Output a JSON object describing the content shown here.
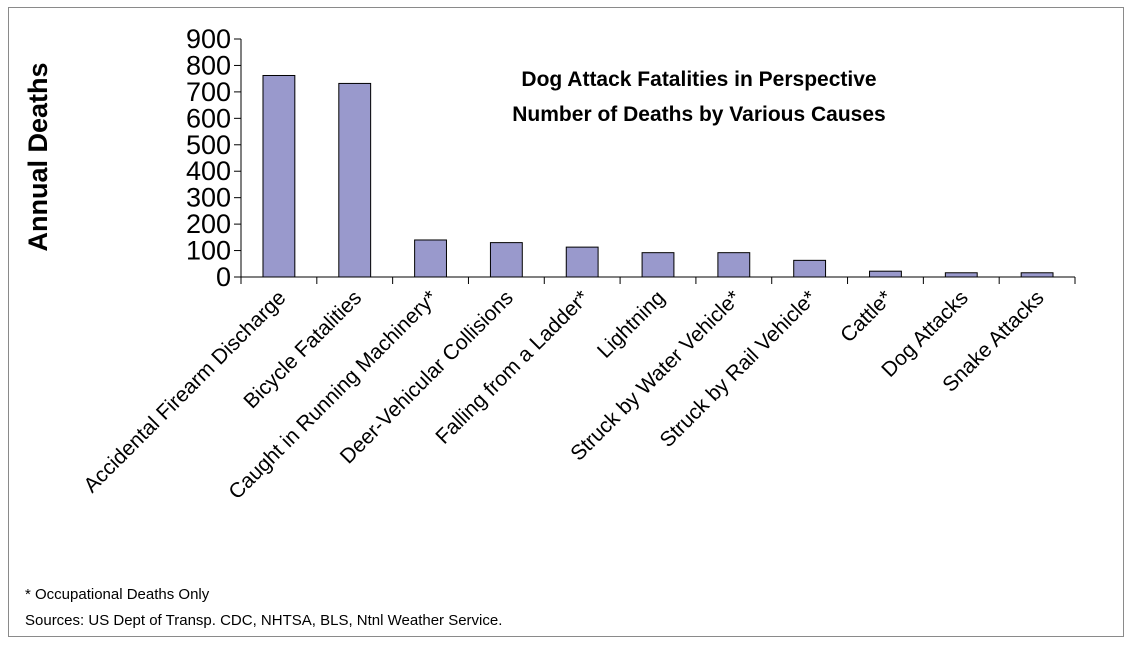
{
  "chart_data": {
    "type": "bar",
    "title": "Dog Attack Fatalities in Perspective",
    "subtitle": "Number of Deaths by Various Causes",
    "ylabel": "Annual Deaths",
    "xlabel": "",
    "ylim": [
      0,
      900
    ],
    "yticks": [
      0,
      100,
      200,
      300,
      400,
      500,
      600,
      700,
      800,
      900
    ],
    "yticklabels": [
      "0",
      "100",
      "200",
      "300",
      "400",
      "500",
      "600",
      "700",
      "800",
      "900"
    ],
    "categories": [
      "Accidental Firearm Discharge",
      "Bicycle Fatalities",
      "Caught in Running Machinery*",
      "Deer-Vehicular Collisions",
      "Falling from a Ladder*",
      "Lightning",
      "Struck by Water Vehicle*",
      "Struck by Rail Vehicle*",
      "Cattle*",
      "Dog Attacks",
      "Snake Attacks"
    ],
    "values": [
      762,
      732,
      140,
      130,
      113,
      92,
      92,
      63,
      22,
      16,
      16
    ],
    "bar_color": "#9999cc",
    "bar_edge_color": "#000000",
    "grid": false,
    "legend": "none"
  },
  "footnotes": {
    "occupational": "* Occupational Deaths Only",
    "sources": "Sources: US Dept of Transp. CDC, NHTSA, BLS, Ntnl Weather Service."
  }
}
